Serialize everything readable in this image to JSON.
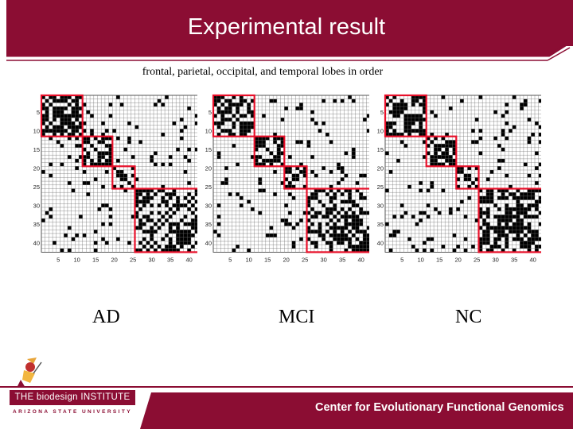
{
  "slide": {
    "title": "Experimental result",
    "subtitle": "frontal, parietal, occipital, and temporal  lobes in order",
    "theme_colors": {
      "maroon": "#8b0d33",
      "highlight": "#e8102a"
    }
  },
  "panels": [
    {
      "label": "AD",
      "y_ticks": [
        "5",
        "10",
        "15",
        "20",
        "25",
        "30",
        "35",
        "40"
      ],
      "x_ticks": [
        "5",
        "10",
        "15",
        "20",
        "25",
        "30",
        "35",
        "40"
      ]
    },
    {
      "label": "MCI",
      "y_ticks": [
        "5",
        "10",
        "15",
        "20",
        "25",
        "30",
        "35",
        "40"
      ],
      "x_ticks": [
        "5",
        "10",
        "15",
        "20",
        "25",
        "30",
        "35",
        "40"
      ]
    },
    {
      "label": "NC",
      "y_ticks": [
        "5",
        "10",
        "15",
        "20",
        "25",
        "30",
        "35",
        "40"
      ],
      "x_ticks": [
        "5",
        "10",
        "15",
        "20",
        "25",
        "30",
        "35",
        "40"
      ]
    }
  ],
  "footer": {
    "logo_name": "THE biodesign INSTITUTE",
    "logo_university": "ARIZONA STATE UNIVERSITY",
    "center_name": "Center for Evolutionary Functional Genomics"
  }
}
